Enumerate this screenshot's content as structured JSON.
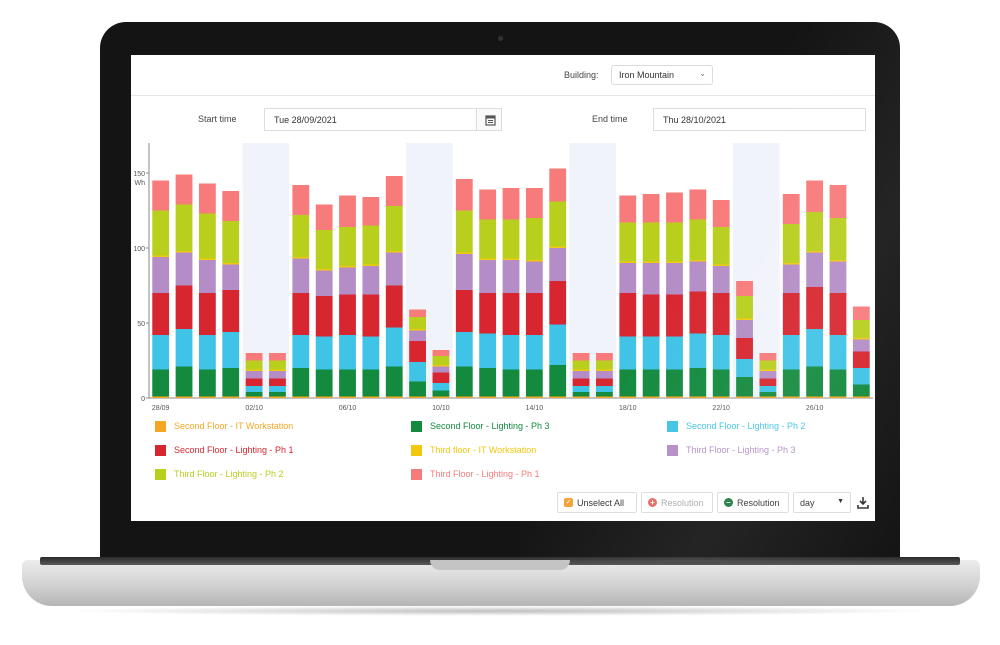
{
  "header": {
    "building_label": "Building:",
    "building_value": "Iron Mountain",
    "start_label": "Start time",
    "start_value": "Tue 28/09/2021",
    "end_label": "End time",
    "end_value": "Thu 28/10/2021"
  },
  "toolbar": {
    "unselect_all": "Unselect All",
    "resolution_plus": "Resolution",
    "resolution_minus": "Resolution",
    "period": "day"
  },
  "colors": {
    "it_second": "#f5a623",
    "lighting3": "#138a3e",
    "ph2_second": "#3fc3e6",
    "ph1_second": "#d7262f",
    "it_third": "#f2c80f",
    "ph3_third": "#b48dc6",
    "ph2_third": "#b8cf1e",
    "ph1_third": "#f87b7b"
  },
  "chart_data": {
    "type": "bar",
    "stacked": true,
    "ylabel": "Wh",
    "ylim": [
      0,
      170
    ],
    "yticks": [
      0,
      50,
      100,
      150
    ],
    "x": [
      "28/09",
      "29/09",
      "30/09",
      "01/10",
      "02/10",
      "03/10",
      "04/10",
      "05/10",
      "06/10",
      "07/10",
      "08/10",
      "09/10",
      "10/10",
      "11/10",
      "12/10",
      "13/10",
      "14/10",
      "15/10",
      "16/10",
      "17/10",
      "18/10",
      "19/10",
      "20/10",
      "21/10",
      "22/10",
      "23/10",
      "24/10",
      "25/10",
      "26/10",
      "27/10",
      "28/10"
    ],
    "xtick_labels": [
      "28/09",
      "02/10",
      "06/10",
      "10/10",
      "14/10",
      "18/10",
      "22/10",
      "26/10"
    ],
    "weekend_shading": [
      [
        4,
        5
      ],
      [
        11,
        12
      ],
      [
        18,
        19
      ],
      [
        25,
        26
      ]
    ],
    "series": [
      {
        "name": "Second Floor - IT Workstation",
        "color_key": "it_second",
        "text_color": "#f5a623",
        "values": [
          1,
          1,
          1,
          1,
          1,
          1,
          1,
          1,
          1,
          1,
          1,
          1,
          1,
          1,
          1,
          1,
          1,
          1,
          1,
          1,
          1,
          1,
          1,
          1,
          1,
          1,
          1,
          1,
          1,
          1,
          1
        ]
      },
      {
        "name": "Second Floor - Lighting - Ph 3",
        "color_key": "lighting3",
        "text_color": "#138a3e",
        "values": [
          18,
          20,
          18,
          19,
          3,
          3,
          19,
          18,
          18,
          18,
          20,
          10,
          4,
          20,
          19,
          18,
          18,
          21,
          3,
          3,
          18,
          18,
          18,
          19,
          18,
          13,
          3,
          18,
          20,
          18,
          8
        ]
      },
      {
        "name": "Second Floor - Lighting - Ph 2",
        "color_key": "ph2_second",
        "text_color": "#3fc3e6",
        "values": [
          23,
          25,
          23,
          24,
          4,
          4,
          22,
          22,
          23,
          22,
          26,
          13,
          5,
          23,
          23,
          23,
          23,
          27,
          4,
          4,
          22,
          22,
          22,
          23,
          23,
          12,
          4,
          23,
          25,
          23,
          11
        ]
      },
      {
        "name": "Second Floor - Lighting - Ph 1",
        "color_key": "ph1_second",
        "text_color": "#d7262f",
        "values": [
          28,
          29,
          28,
          28,
          5,
          5,
          28,
          27,
          27,
          28,
          28,
          14,
          7,
          28,
          27,
          28,
          28,
          29,
          5,
          5,
          29,
          28,
          28,
          28,
          28,
          14,
          5,
          28,
          28,
          28,
          11
        ]
      },
      {
        "name": "Third Floor - Lighting - Ph 3",
        "color_key": "ph3_third",
        "text_color": "#b48dc6",
        "values": [
          24,
          22,
          22,
          17,
          5,
          5,
          23,
          17,
          18,
          19,
          22,
          7,
          4,
          24,
          22,
          22,
          21,
          22,
          5,
          5,
          20,
          21,
          21,
          20,
          18,
          12,
          5,
          19,
          23,
          21,
          8
        ]
      },
      {
        "name": "Third floor - IT Workstation",
        "color_key": "it_third",
        "text_color": "#f2c80f",
        "values": [
          1,
          1,
          1,
          1,
          1,
          1,
          1,
          1,
          1,
          1,
          1,
          1,
          1,
          1,
          1,
          1,
          1,
          1,
          1,
          1,
          1,
          1,
          1,
          1,
          1,
          1,
          1,
          1,
          1,
          1,
          1
        ]
      },
      {
        "name": "Third Floor - Lighting - Ph 2",
        "color_key": "ph2_third",
        "text_color": "#b8cf1e",
        "values": [
          30,
          31,
          30,
          28,
          6,
          6,
          28,
          26,
          26,
          26,
          30,
          8,
          6,
          28,
          26,
          26,
          28,
          30,
          6,
          6,
          26,
          26,
          26,
          27,
          25,
          15,
          6,
          26,
          26,
          28,
          12
        ]
      },
      {
        "name": "Third Floor - Lighting - Ph 1",
        "color_key": "ph1_third",
        "text_color": "#f87b7b",
        "values": [
          20,
          20,
          20,
          20,
          5,
          5,
          20,
          17,
          21,
          19,
          20,
          5,
          4,
          21,
          20,
          21,
          20,
          22,
          5,
          5,
          18,
          19,
          20,
          20,
          18,
          10,
          5,
          20,
          21,
          22,
          9
        ]
      }
    ],
    "legend": "bottom"
  }
}
